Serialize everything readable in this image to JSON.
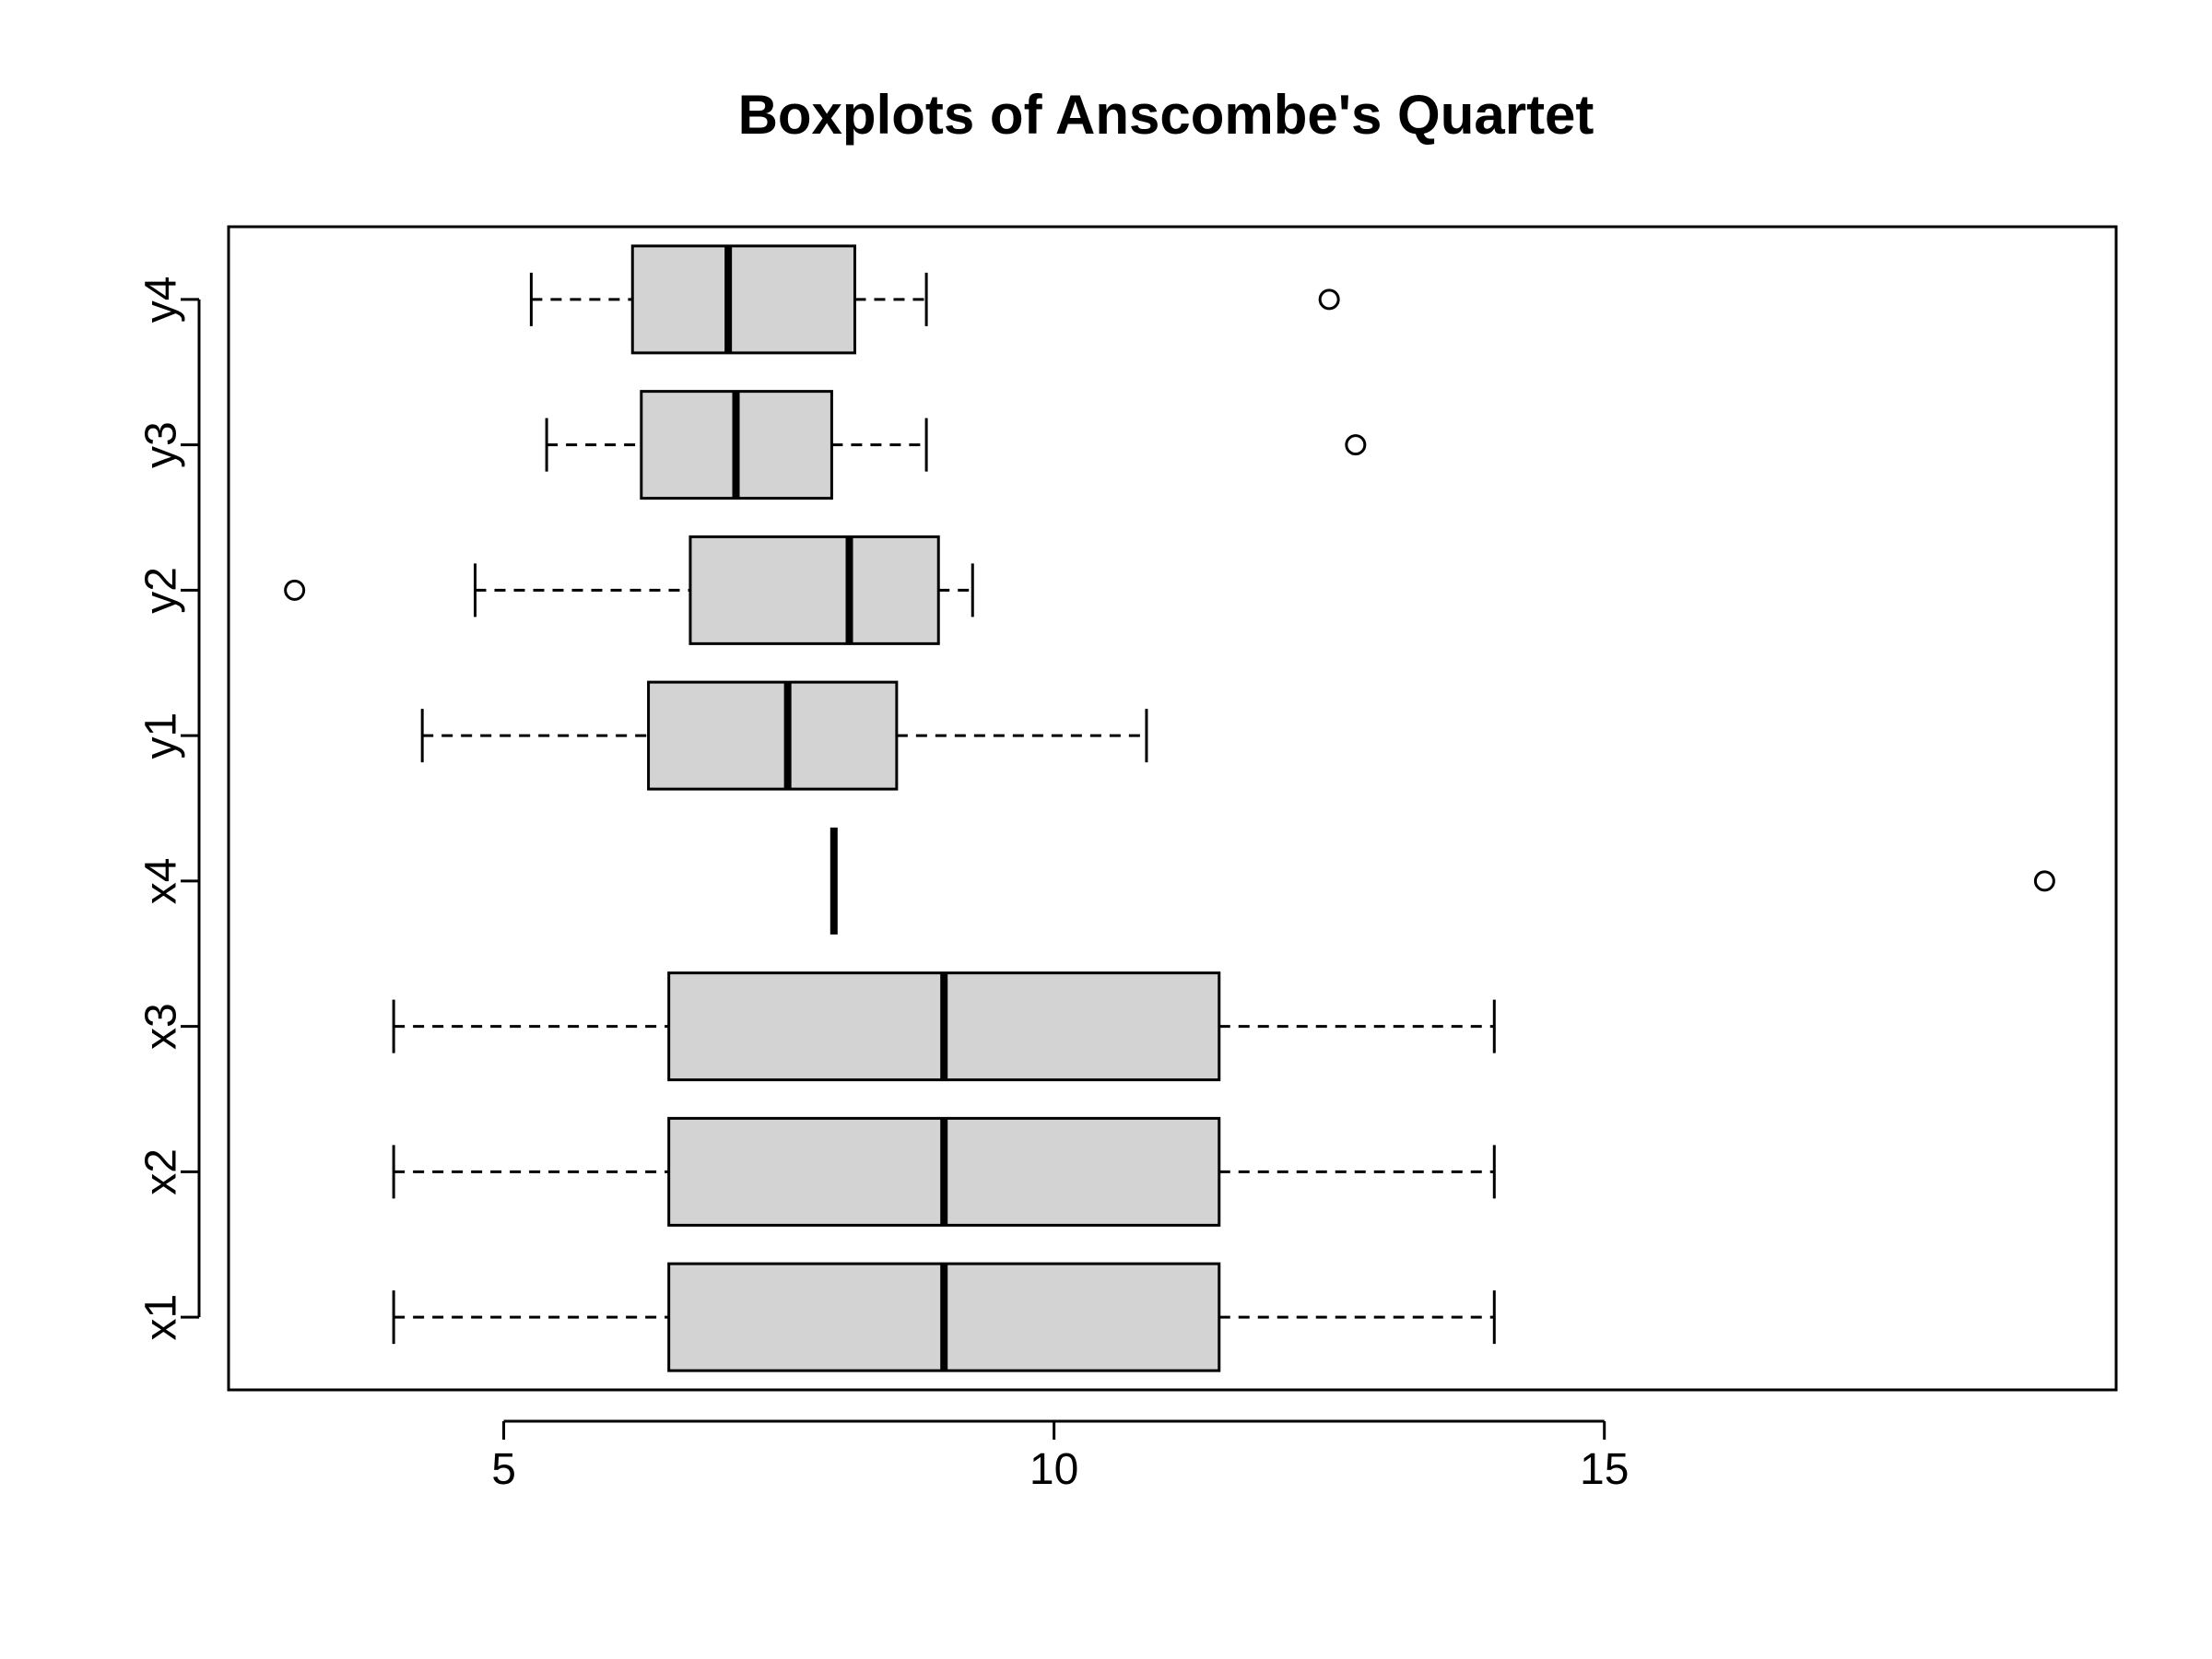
{
  "chart_data": {
    "type": "boxplot",
    "orientation": "horizontal",
    "title": "Boxplots of Anscombe's Quartet",
    "xlabel": "",
    "ylabel": "",
    "xlim": [
      2.5,
      19.65
    ],
    "x_ticks": [
      5,
      10,
      15
    ],
    "grid": false,
    "box_color": "#d3d3d3",
    "series": [
      {
        "name": "x1",
        "min": 4,
        "q1": 6.5,
        "median": 9,
        "q3": 11.5,
        "max": 14,
        "outliers": []
      },
      {
        "name": "x2",
        "min": 4,
        "q1": 6.5,
        "median": 9,
        "q3": 11.5,
        "max": 14,
        "outliers": []
      },
      {
        "name": "x3",
        "min": 4,
        "q1": 6.5,
        "median": 9,
        "q3": 11.5,
        "max": 14,
        "outliers": []
      },
      {
        "name": "x4",
        "min": 8,
        "q1": 8,
        "median": 8,
        "q3": 8,
        "max": 8,
        "outliers": [
          19
        ]
      },
      {
        "name": "y1",
        "min": 4.26,
        "q1": 6.315,
        "median": 7.58,
        "q3": 8.57,
        "max": 10.84,
        "outliers": []
      },
      {
        "name": "y2",
        "min": 4.74,
        "q1": 6.695,
        "median": 8.14,
        "q3": 8.95,
        "max": 9.26,
        "outliers": [
          3.1
        ]
      },
      {
        "name": "y3",
        "min": 5.39,
        "q1": 6.25,
        "median": 7.11,
        "q3": 7.98,
        "max": 8.84,
        "outliers": [
          12.74
        ]
      },
      {
        "name": "y4",
        "min": 5.25,
        "q1": 6.17,
        "median": 7.04,
        "q3": 8.19,
        "max": 8.84,
        "outliers": [
          12.5
        ]
      }
    ]
  }
}
